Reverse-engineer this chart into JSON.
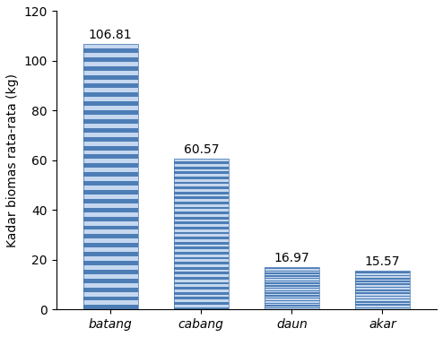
{
  "categories": [
    "batang",
    "cabang",
    "daun",
    "akar"
  ],
  "values": [
    106.81,
    60.57,
    16.97,
    15.57
  ],
  "bar_color_main": "#4d7db5",
  "bar_color_light_stripe": "#c5d8ef",
  "bar_color_dark_stripe": "#4070ae",
  "ylabel": "Kadar biomas rata-rata (kg)",
  "ylim": [
    0,
    120
  ],
  "yticks": [
    0,
    20,
    40,
    60,
    80,
    100,
    120
  ],
  "label_fontsize": 10,
  "tick_fontsize": 10,
  "value_label_fontsize": 10,
  "bar_width": 0.6,
  "n_stripes": 60,
  "figsize": [
    4.94,
    3.76
  ],
  "dpi": 100
}
